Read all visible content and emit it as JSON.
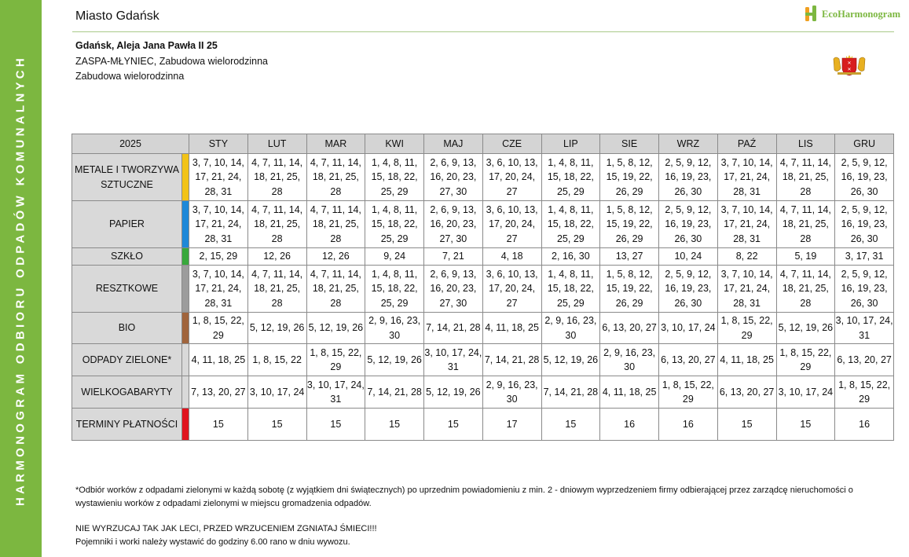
{
  "sidebar": {
    "text": "HARMONOGRAM  ODBIORU  ODPADÓW  KOMUNALNYCH"
  },
  "header": {
    "city": "Miasto Gdańsk",
    "brand": "EcoHarmonogram"
  },
  "location": {
    "address": "Gdańsk, Aleja Jana Pawła II 25",
    "district": "ZASPA-MŁYNIEC, Zabudowa wielorodzinna",
    "building_type": "Zabudowa wielorodzinna"
  },
  "table": {
    "year": "2025",
    "months": [
      "STY",
      "LUT",
      "MAR",
      "KWI",
      "MAJ",
      "CZE",
      "LIP",
      "SIE",
      "WRZ",
      "PAŹ",
      "LIS",
      "GRU"
    ],
    "rows": [
      {
        "label": "METALE I TWORZYWA SZTUCZNE",
        "color": "#f2c318",
        "values": [
          "3, 7, 10, 14, 17, 21, 24, 28, 31",
          "4, 7, 11, 14, 18, 21, 25, 28",
          "4, 7, 11, 14, 18, 21, 25, 28",
          "1, 4, 8, 11, 15, 18, 22, 25, 29",
          "2, 6, 9, 13, 16, 20, 23, 27, 30",
          "3, 6, 10, 13, 17, 20, 24, 27",
          "1, 4, 8, 11, 15, 18, 22, 25, 29",
          "1, 5, 8, 12, 15, 19, 22, 26, 29",
          "2, 5, 9, 12, 16, 19, 23, 26, 30",
          "3, 7, 10, 14, 17, 21, 24, 28, 31",
          "4, 7, 11, 14, 18, 21, 25, 28",
          "2, 5, 9, 12, 16, 19, 23, 26, 30"
        ]
      },
      {
        "label": "PAPIER",
        "color": "#1e88d8",
        "values": [
          "3, 7, 10, 14, 17, 21, 24, 28, 31",
          "4, 7, 11, 14, 18, 21, 25, 28",
          "4, 7, 11, 14, 18, 21, 25, 28",
          "1, 4, 8, 11, 15, 18, 22, 25, 29",
          "2, 6, 9, 13, 16, 20, 23, 27, 30",
          "3, 6, 10, 13, 17, 20, 24, 27",
          "1, 4, 8, 11, 15, 18, 22, 25, 29",
          "1, 5, 8, 12, 15, 19, 22, 26, 29",
          "2, 5, 9, 12, 16, 19, 23, 26, 30",
          "3, 7, 10, 14, 17, 21, 24, 28, 31",
          "4, 7, 11, 14, 18, 21, 25, 28",
          "2, 5, 9, 12, 16, 19, 23, 26, 30"
        ]
      },
      {
        "label": "SZKŁO",
        "color": "#38a83c",
        "values": [
          "2, 15, 29",
          "12, 26",
          "12, 26",
          "9, 24",
          "7, 21",
          "4, 18",
          "2, 16, 30",
          "13, 27",
          "10, 24",
          "8, 22",
          "5, 19",
          "3, 17, 31"
        ]
      },
      {
        "label": "RESZTKOWE",
        "color": "#9c9c9c",
        "values": [
          "3, 7, 10, 14, 17, 21, 24, 28, 31",
          "4, 7, 11, 14, 18, 21, 25, 28",
          "4, 7, 11, 14, 18, 21, 25, 28",
          "1, 4, 8, 11, 15, 18, 22, 25, 29",
          "2, 6, 9, 13, 16, 20, 23, 27, 30",
          "3, 6, 10, 13, 17, 20, 24, 27",
          "1, 4, 8, 11, 15, 18, 22, 25, 29",
          "1, 5, 8, 12, 15, 19, 22, 26, 29",
          "2, 5, 9, 12, 16, 19, 23, 26, 30",
          "3, 7, 10, 14, 17, 21, 24, 28, 31",
          "4, 7, 11, 14, 18, 21, 25, 28",
          "2, 5, 9, 12, 16, 19, 23, 26, 30"
        ]
      },
      {
        "label": "BIO",
        "color": "#a0643c",
        "values": [
          "1, 8, 15, 22, 29",
          "5, 12, 19, 26",
          "5, 12, 19, 26",
          "2, 9, 16, 23, 30",
          "7, 14, 21, 28",
          "4, 11, 18, 25",
          "2, 9, 16, 23, 30",
          "6, 13, 20, 27",
          "3, 10, 17, 24",
          "1, 8, 15, 22, 29",
          "5, 12, 19, 26",
          "3, 10, 17, 24, 31"
        ]
      },
      {
        "label": "ODPADY ZIELONE*",
        "color": "",
        "values": [
          "4, 11, 18, 25",
          "1, 8, 15, 22",
          "1, 8, 15, 22, 29",
          "5, 12, 19, 26",
          "3, 10, 17, 24, 31",
          "7, 14, 21, 28",
          "5, 12, 19, 26",
          "2, 9, 16, 23, 30",
          "6, 13, 20, 27",
          "4, 11, 18, 25",
          "1, 8, 15, 22, 29",
          "6, 13, 20, 27"
        ]
      },
      {
        "label": "WIELKOGABARYTY",
        "color": "",
        "values": [
          "7, 13, 20, 27",
          "3, 10, 17, 24",
          "3, 10, 17, 24, 31",
          "7, 14, 21, 28",
          "5, 12, 19, 26",
          "2, 9, 16, 23, 30",
          "7, 14, 21, 28",
          "4, 11, 18, 25",
          "1, 8, 15, 22, 29",
          "6, 13, 20, 27",
          "3, 10, 17, 24",
          "1, 8, 15, 22, 29"
        ]
      },
      {
        "label": "TERMINY PŁATNOŚCI",
        "color": "#e0141e",
        "values": [
          "15",
          "15",
          "15",
          "15",
          "15",
          "17",
          "15",
          "16",
          "16",
          "15",
          "15",
          "16"
        ]
      }
    ]
  },
  "footer": {
    "footnote": "*Odbiór worków z odpadami zielonymi w każdą sobotę (z wyjątkiem dni świątecznych) po uprzednim powiadomieniu z min. 2 - dniowym wyprzedzeniem firmy odbierającej przez zarządcę nieruchomości o wystawieniu worków z odpadami zielonymi w miejscu gromadzenia odpadów.",
    "warning": "NIE WYRZUCAJ TAK JAK LECI, PRZED WRZUCENIEM ZGNIATAJ ŚMIECI!!!",
    "note": "Pojemniki i worki należy wystawić do godziny 6.00 rano w dniu wywozu."
  },
  "colors": {
    "sidebar": "#7cb740",
    "header_cell": "#d4d4d4",
    "label_cell": "#d9d9d9"
  }
}
